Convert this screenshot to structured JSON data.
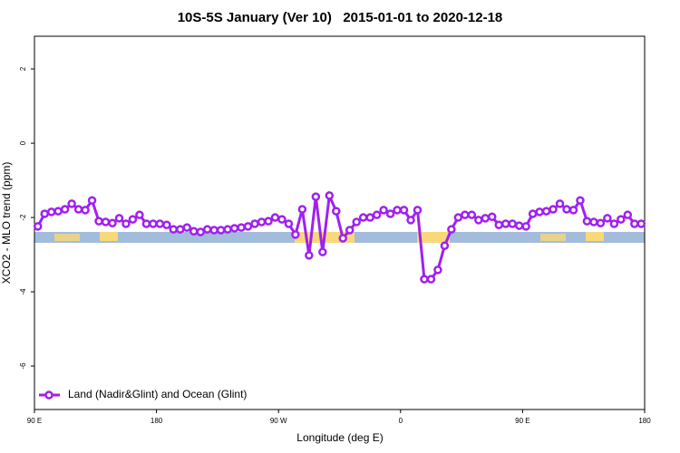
{
  "chart_data": {
    "type": "line",
    "title": "10S-5S January (Ver 10)   2015-01-01 to 2020-12-18",
    "x_label": "Longitude (deg E)",
    "y_label": "XCO2 - MLO trend (ppm)",
    "xlim": [
      90,
      540
    ],
    "ylim": [
      -7.17,
      2.88
    ],
    "xticks": [
      {
        "value": 90,
        "label": "90 E"
      },
      180,
      {
        "value": 270,
        "label": "90 W"
      },
      {
        "value": 360,
        "label": "0"
      },
      {
        "value": 450,
        "label": "90 E"
      },
      {
        "value": 540,
        "label": "180"
      }
    ],
    "yticks": [
      -6,
      -4,
      -2,
      0,
      2
    ],
    "legend": "bottom-left",
    "x": [
      92.5,
      97.5,
      102.5,
      107.5,
      112.5,
      117.5,
      122.5,
      127.5,
      132.5,
      137.5,
      142.5,
      147.5,
      152.5,
      157.5,
      162.5,
      167.5,
      172.5,
      177.5,
      182.5,
      187.5,
      192.5,
      197.5,
      202.5,
      207.5,
      212.5,
      217.5,
      222.5,
      227.5,
      232.5,
      237.5,
      242.5,
      247.5,
      252.5,
      257.5,
      262.5,
      267.5,
      272.5,
      277.5,
      282.5,
      287.5,
      292.5,
      297.5,
      302.5,
      307.5,
      312.5,
      317.5,
      322.5,
      327.5,
      332.5,
      337.5,
      342.5,
      347.5,
      352.5,
      357.5,
      362.5,
      367.5,
      372.5,
      377.5,
      382.5,
      387.5,
      392.5,
      397.5,
      402.5,
      407.5,
      412.5,
      417.5,
      422.5,
      427.5,
      432.5,
      437.5,
      442.5,
      447.5,
      452.5,
      457.5,
      462.5,
      467.5,
      472.5,
      477.5,
      482.5,
      487.5,
      492.5,
      497.5,
      502.5,
      507.5,
      512.5,
      517.5,
      522.5,
      527.5,
      532.5,
      537.5
    ],
    "series": [
      {
        "name": "Land (Nadir&Glint) and Ocean (Glint)",
        "color": "#a020f0",
        "values": [
          -2.24,
          -1.9,
          -1.85,
          -1.83,
          -1.78,
          -1.63,
          -1.78,
          -1.8,
          -1.54,
          -2.1,
          -2.12,
          -2.15,
          -2.02,
          -2.17,
          -2.05,
          -1.93,
          -2.17,
          -2.17,
          -2.17,
          -2.2,
          -2.32,
          -2.32,
          -2.27,
          -2.37,
          -2.39,
          -2.32,
          -2.34,
          -2.34,
          -2.32,
          -2.29,
          -2.27,
          -2.24,
          -2.17,
          -2.12,
          -2.1,
          -2.0,
          -2.05,
          -2.17,
          -2.46,
          -1.78,
          -3.02,
          -1.44,
          -2.93,
          -1.41,
          -1.83,
          -2.56,
          -2.34,
          -2.12,
          -2.0,
          -2.0,
          -1.93,
          -1.8,
          -1.9,
          -1.8,
          -1.8,
          -2.07,
          -1.8,
          -3.66,
          -3.66,
          -3.41,
          -2.76,
          -2.32,
          -2.0,
          -1.93,
          -1.93,
          -2.07,
          -2.02,
          -1.98,
          -2.2,
          -2.17,
          -2.17,
          -2.22,
          -2.24,
          -1.9,
          -1.85,
          -1.83,
          -1.78,
          -1.63,
          -1.78,
          -1.8,
          -1.54,
          -2.1,
          -2.12,
          -2.15,
          -2.02,
          -2.17,
          -2.05,
          -1.93,
          -2.17,
          -2.17
        ]
      }
    ]
  }
}
